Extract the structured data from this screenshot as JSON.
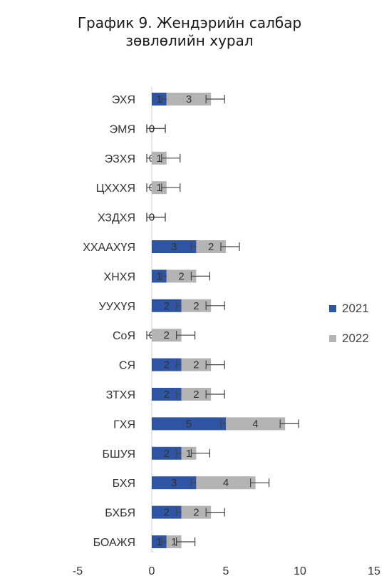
{
  "chart_data": {
    "type": "bar",
    "orientation": "horizontal",
    "stacked": true,
    "title": "График 9. Жендэрийн салбар зөвлөлийн хурал",
    "title_lines": [
      "График 9. Жендэрийн салбар",
      "зөвлөлийн хурал"
    ],
    "categories": [
      "ЭХЯ",
      "ЭМЯ",
      "ЭЗХЯ",
      "ЦХХХЯ",
      "ХЗДХЯ",
      "ХХААХҮЯ",
      "ХНХЯ",
      "УУХҮЯ",
      "СоЯ",
      "СЯ",
      "ЗТХЯ",
      "ГХЯ",
      "БШУЯ",
      "БХЯ",
      "БХБЯ",
      "БОАЖЯ"
    ],
    "series": [
      {
        "name": "2021",
        "color": "#2e54a4",
        "values": [
          1,
          0,
          0,
          0,
          0,
          3,
          1,
          2,
          0,
          2,
          2,
          5,
          2,
          3,
          2,
          1
        ]
      },
      {
        "name": "2022",
        "color": "#b4b4b4",
        "values": [
          3,
          0,
          1,
          1,
          0,
          2,
          2,
          2,
          2,
          2,
          2,
          4,
          1,
          4,
          2,
          1
        ]
      }
    ],
    "xlim": [
      -5,
      15
    ],
    "xticks": [
      "-5",
      "0",
      "5",
      "10",
      "15"
    ],
    "error_bars": true,
    "legend_position": "right"
  }
}
